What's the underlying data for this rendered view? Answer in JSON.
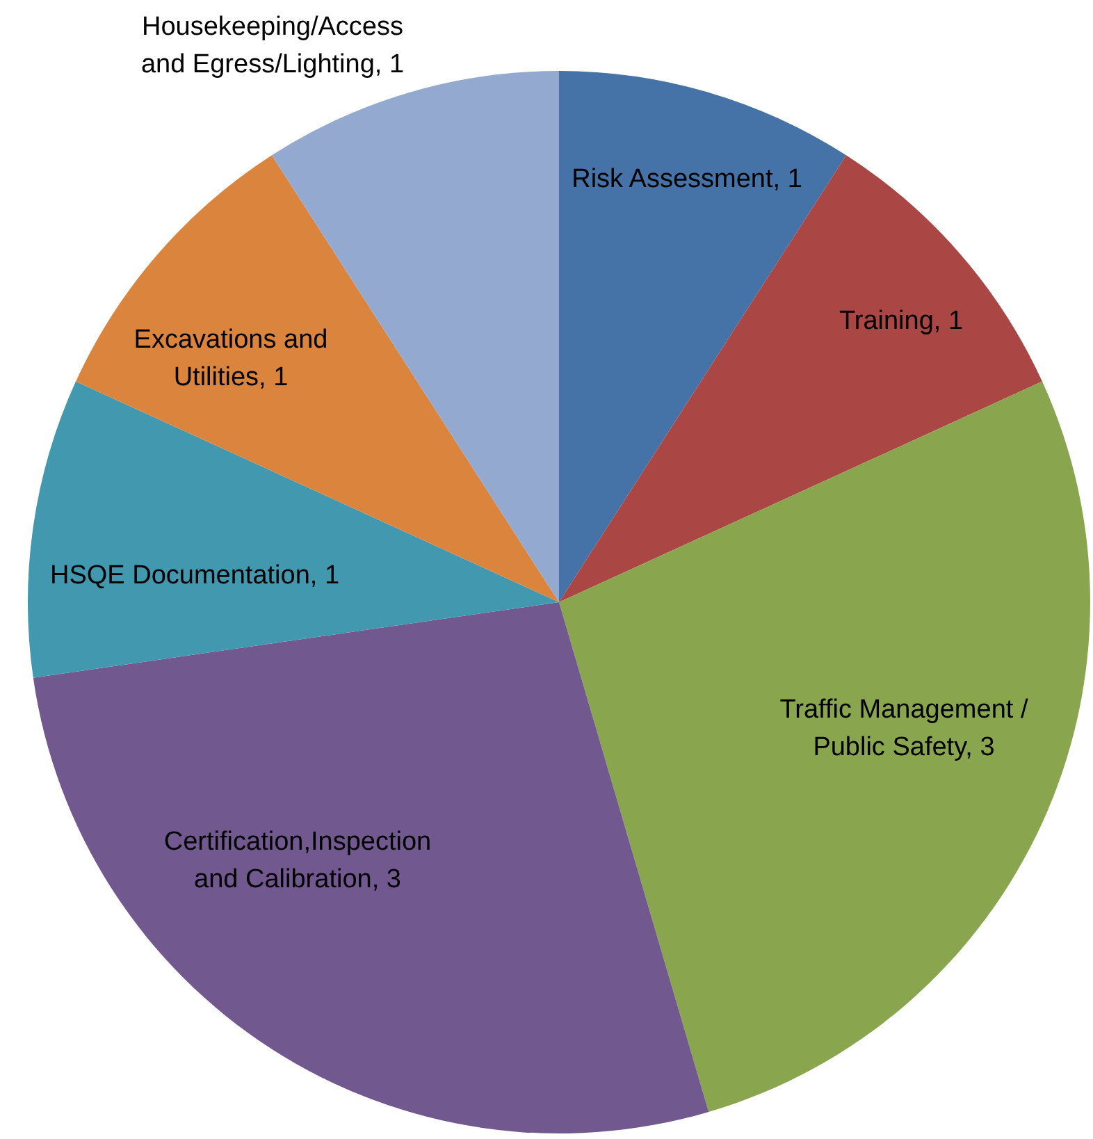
{
  "chart_data": {
    "type": "pie",
    "categories": [
      "Risk Assessment, 1",
      "Training, 1",
      "Traffic Management / Public Safety, 3",
      "Certification,Inspection and Calibration, 3",
      "HSQE Documentation,  1",
      "Excavations and Utilities, 1",
      "Housekeeping/Access and Egress/Lighting, 1"
    ],
    "values": [
      1,
      1,
      3,
      3,
      1,
      1,
      1
    ],
    "colors": [
      "#4572a7",
      "#aa4643",
      "#89a54e",
      "#71588f",
      "#4198af",
      "#db843d",
      "#93a9cf"
    ]
  }
}
